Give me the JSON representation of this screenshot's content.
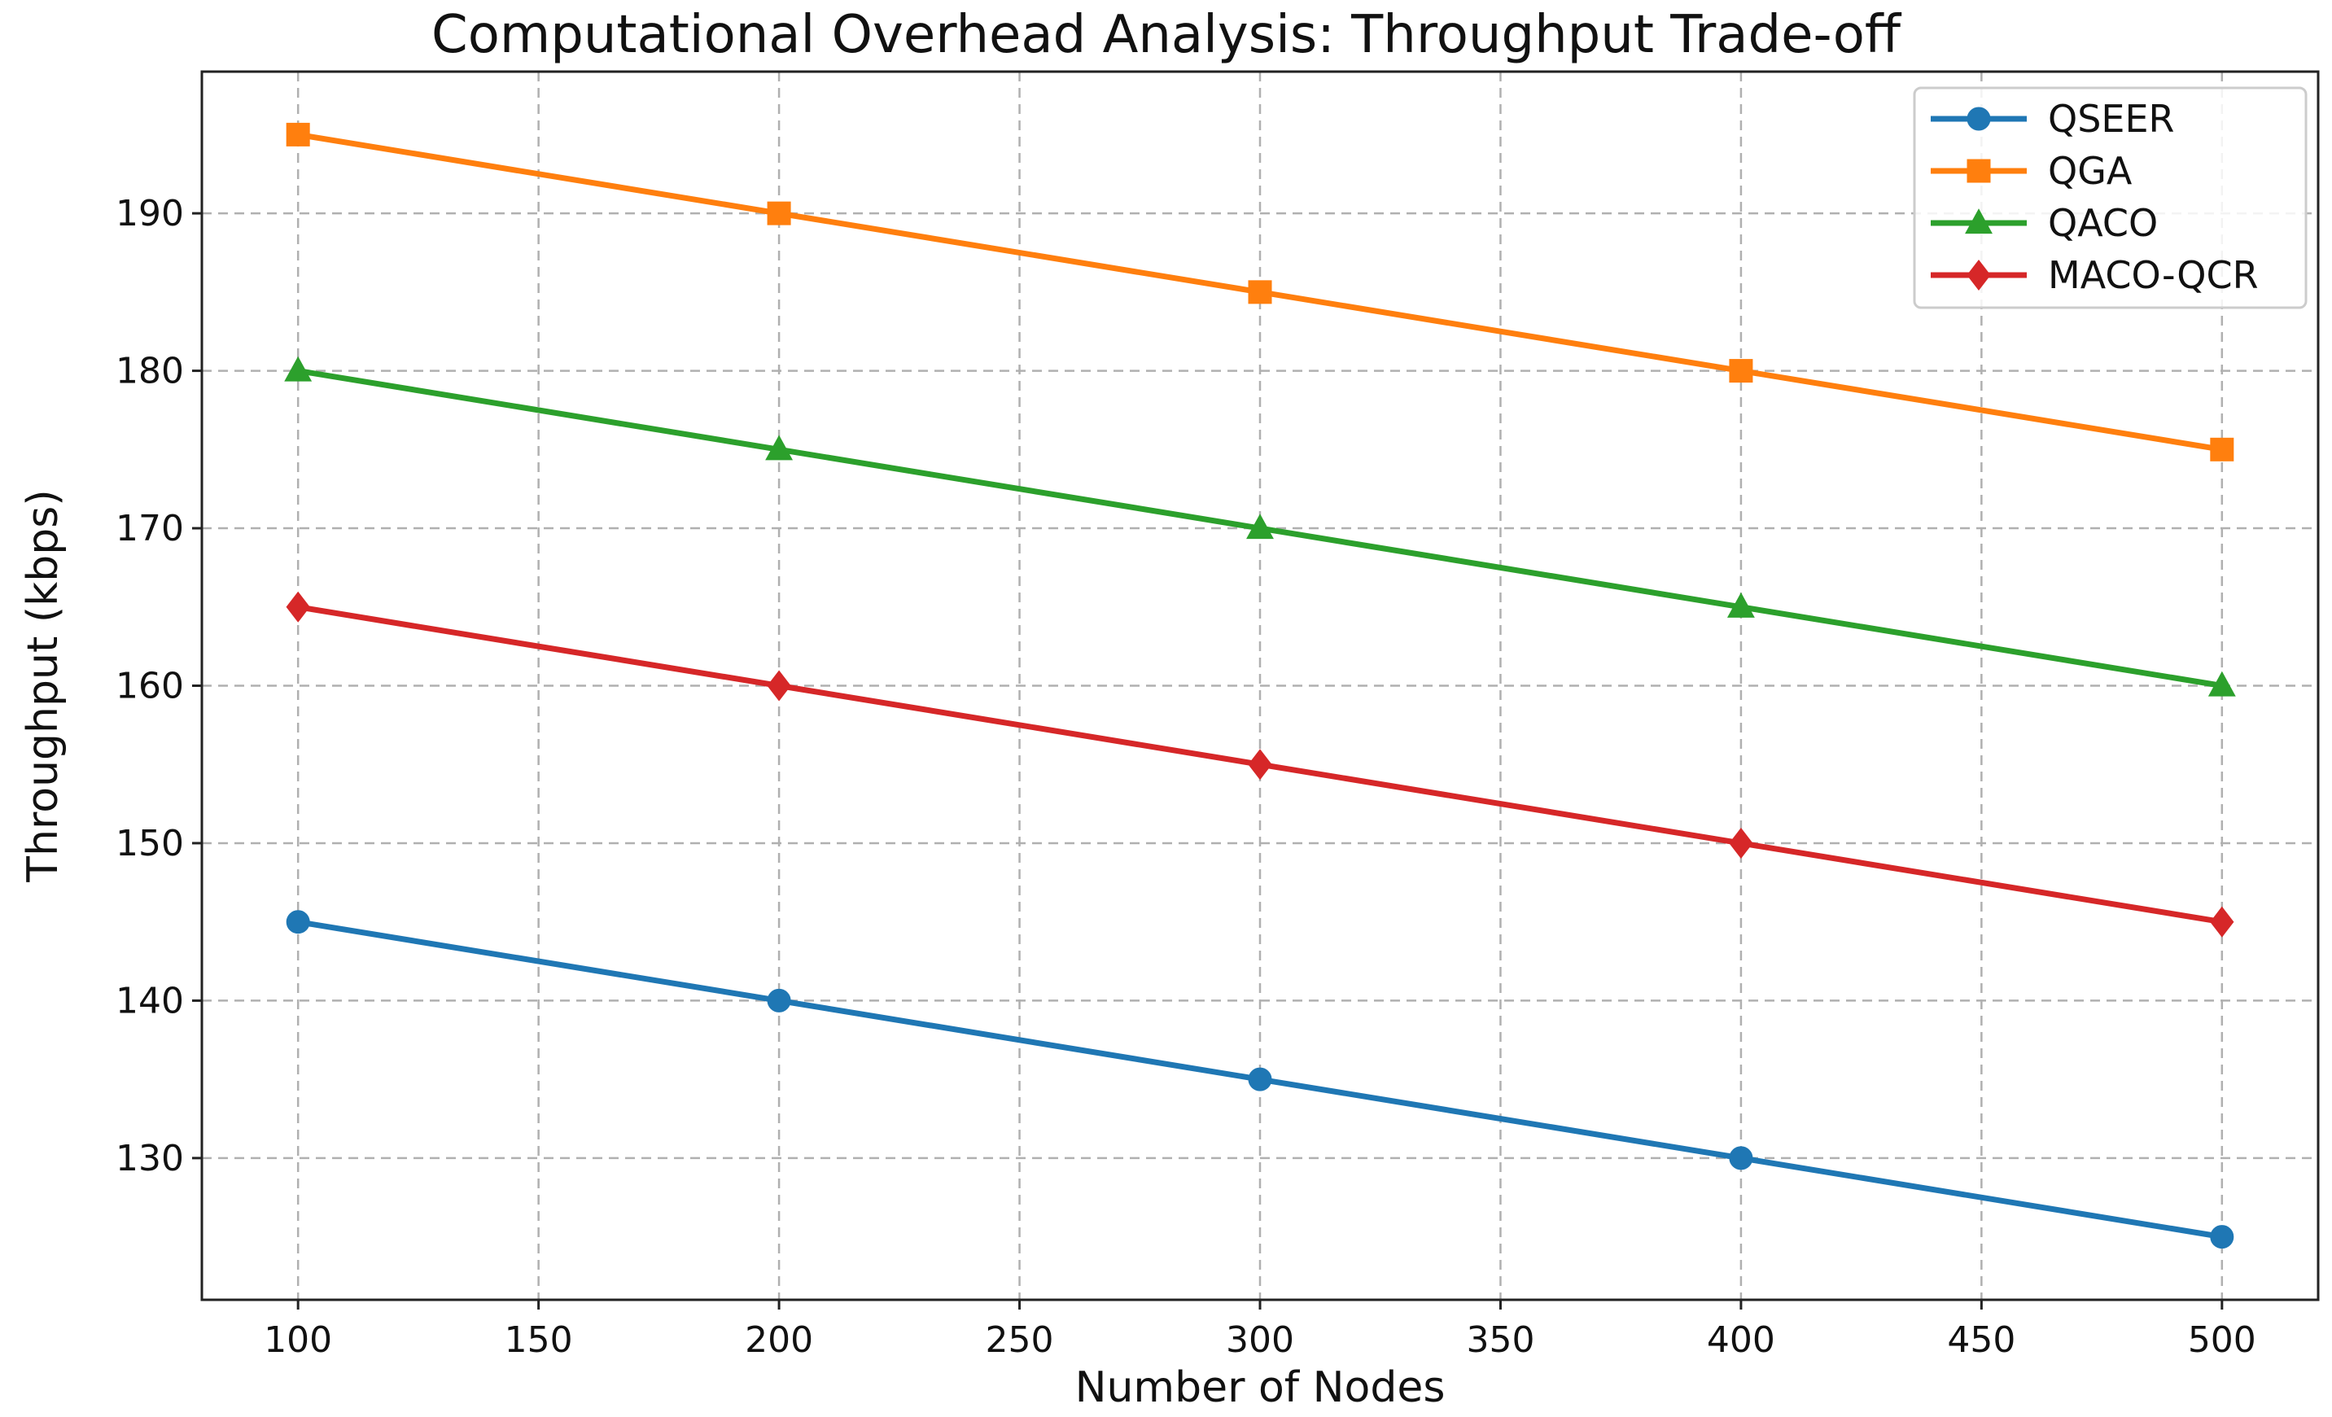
{
  "chart_data": {
    "type": "line",
    "title": "Computational Overhead Analysis: Throughput Trade-off",
    "xlabel": "Number of Nodes",
    "ylabel": "Throughput (kbps)",
    "x": [
      100,
      200,
      300,
      400,
      500
    ],
    "xlim": [
      80,
      520
    ],
    "ylim": [
      121,
      199
    ],
    "xticks": [
      100,
      150,
      200,
      250,
      300,
      350,
      400,
      450,
      500
    ],
    "yticks": [
      130,
      140,
      150,
      160,
      170,
      180,
      190
    ],
    "grid": true,
    "legend_position": "top-right",
    "series": [
      {
        "name": "QSEER",
        "color": "#1f77b4",
        "marker": "circle",
        "values": [
          145,
          140,
          135,
          130,
          125
        ]
      },
      {
        "name": "QGA",
        "color": "#ff7f0e",
        "marker": "square",
        "values": [
          195,
          190,
          185,
          180,
          175
        ]
      },
      {
        "name": "QACO",
        "color": "#2ca02c",
        "marker": "triangle",
        "values": [
          180,
          175,
          170,
          165,
          160
        ]
      },
      {
        "name": "MACO-QCR",
        "color": "#d62728",
        "marker": "diamond",
        "values": [
          165,
          160,
          155,
          150,
          145
        ]
      }
    ]
  }
}
